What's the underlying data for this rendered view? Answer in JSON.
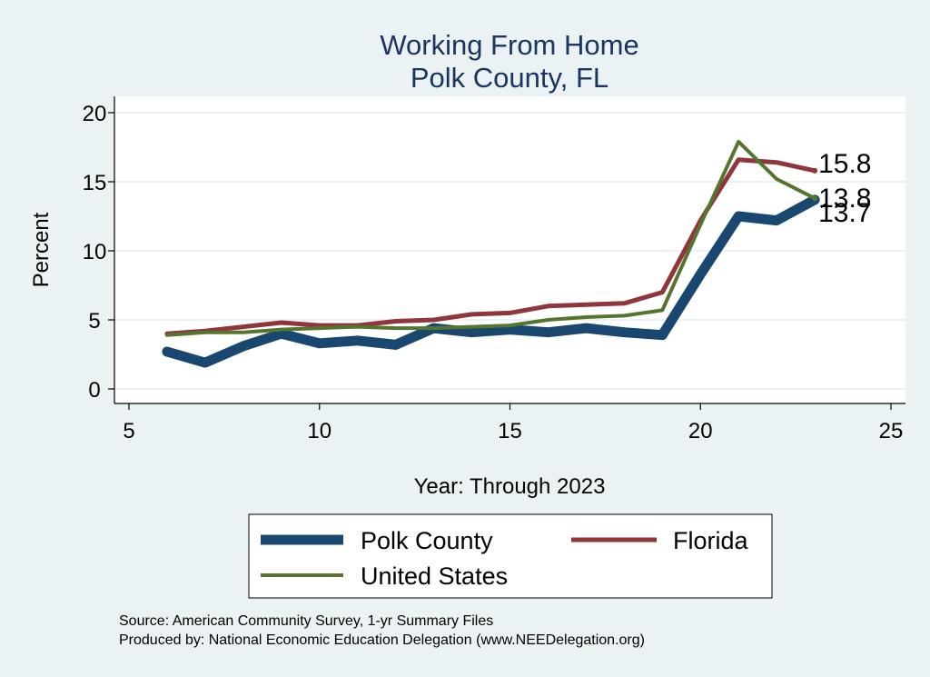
{
  "chart_data": {
    "type": "line",
    "title": [
      "Working From Home",
      "Polk County, FL"
    ],
    "xlabel": "Year: Through 2023",
    "ylabel": "Percent",
    "xlim": [
      5,
      25
    ],
    "ylim": [
      0,
      20
    ],
    "xticks": [
      5,
      10,
      15,
      20,
      25
    ],
    "yticks": [
      0,
      5,
      10,
      15,
      20
    ],
    "grid": true,
    "legend_position": "bottom",
    "x": [
      6,
      7,
      8,
      9,
      10,
      11,
      12,
      13,
      14,
      15,
      16,
      17,
      18,
      19,
      20,
      21,
      22,
      23
    ],
    "series": [
      {
        "name": "Polk County",
        "color": "#1a476f",
        "values": [
          2.7,
          1.9,
          3.1,
          4.0,
          3.3,
          3.5,
          3.2,
          4.4,
          4.1,
          4.3,
          4.1,
          4.4,
          4.1,
          3.9,
          8.3,
          12.5,
          12.2,
          13.7
        ],
        "end_label": "13.7"
      },
      {
        "name": "Florida",
        "color": "#90353b",
        "values": [
          4.0,
          4.2,
          4.5,
          4.8,
          4.6,
          4.6,
          4.9,
          5.0,
          5.4,
          5.5,
          6.0,
          6.1,
          6.2,
          7.0,
          12.2,
          16.6,
          16.4,
          15.8
        ],
        "end_label": "15.8"
      },
      {
        "name": "United States",
        "color": "#55752f",
        "values": [
          3.9,
          4.1,
          4.1,
          4.3,
          4.4,
          4.5,
          4.4,
          4.4,
          4.5,
          4.6,
          5.0,
          5.2,
          5.3,
          5.7,
          11.9,
          17.9,
          15.2,
          13.8
        ],
        "end_label": "13.8"
      }
    ]
  },
  "source_line": "Source: American Community Survey, 1-yr Summary Files",
  "produced_line": "Produced by: National Economic Education Delegation (www.NEEDelegation.org)"
}
